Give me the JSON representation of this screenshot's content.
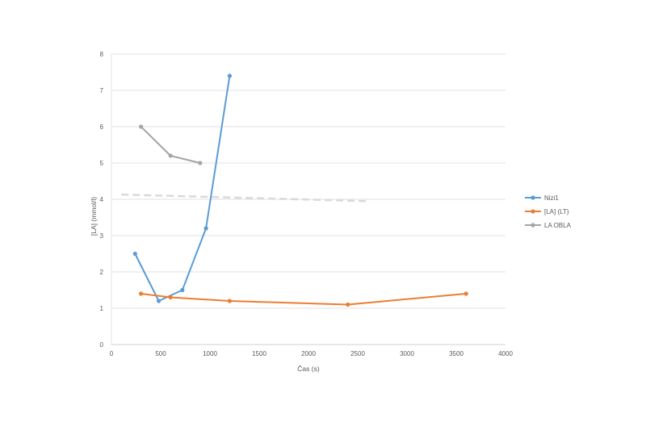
{
  "chart_data": {
    "type": "scatter",
    "title": "",
    "xlabel": "Čas (s)",
    "ylabel": "[LA]  (mmol/l)",
    "xlim": [
      0,
      4000
    ],
    "ylim": [
      0,
      8
    ],
    "x_ticks": [
      0,
      500,
      1000,
      1500,
      2000,
      2500,
      3000,
      3500,
      4000
    ],
    "y_ticks": [
      0,
      1,
      2,
      3,
      4,
      5,
      6,
      7,
      8
    ],
    "grid": "horizontal",
    "legend_position": "right",
    "series": [
      {
        "name": "Nizi1",
        "color": "#5b9bd5",
        "x": [
          240,
          480,
          720,
          960,
          1200
        ],
        "y": [
          2.5,
          1.2,
          1.5,
          3.2,
          7.4
        ]
      },
      {
        "name": "[LA] (LT)",
        "color": "#ed7d31",
        "x": [
          300,
          600,
          1200,
          2400,
          3600
        ],
        "y": [
          1.4,
          1.3,
          1.2,
          1.1,
          1.4
        ]
      },
      {
        "name": "LA OBLA",
        "color": "#a5a5a5",
        "x": [
          300,
          600,
          900
        ],
        "y": [
          6.0,
          5.2,
          5.0
        ]
      }
    ],
    "trendline": {
      "color": "#d9d9d9",
      "dashed": true,
      "x": [
        100,
        2600
      ],
      "y": [
        4.13,
        3.95
      ]
    }
  }
}
